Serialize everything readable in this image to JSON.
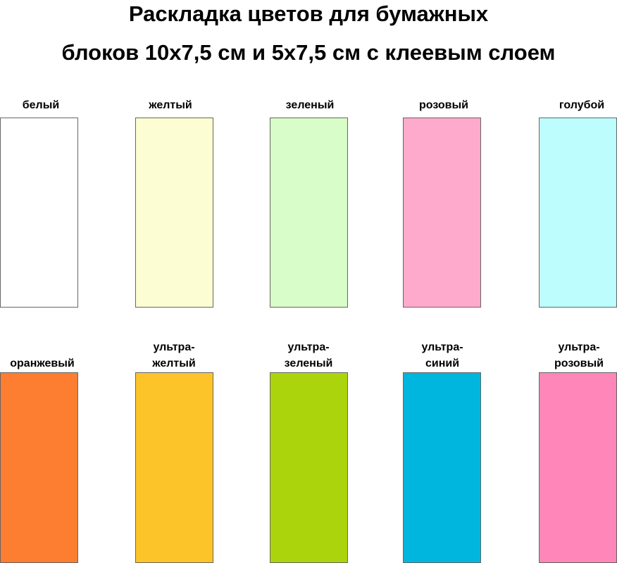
{
  "title": {
    "line1": "Раскладка цветов для бумажных",
    "line2": "блоков 10х7,5 см и 5х7,5 см с клеевым слоем"
  },
  "row1": [
    {
      "label": "белый",
      "color": "#ffffff"
    },
    {
      "label": "желтый",
      "color": "#fdfdd4"
    },
    {
      "label": "зеленый",
      "color": "#d8fdc8"
    },
    {
      "label": "розовый",
      "color": "#feaacc"
    },
    {
      "label": "голубой",
      "color": "#befdfd"
    }
  ],
  "row2": [
    {
      "label": "оранжевый",
      "color": "#fd7e30"
    },
    {
      "label": "ультра-\nжелтый",
      "color": "#fdc42a"
    },
    {
      "label": "ультра-\nзеленый",
      "color": "#acd40c"
    },
    {
      "label": "ультра-\nсиний",
      "color": "#00b6de"
    },
    {
      "label": "ультра-\nрозовый",
      "color": "#fe86b8"
    }
  ]
}
